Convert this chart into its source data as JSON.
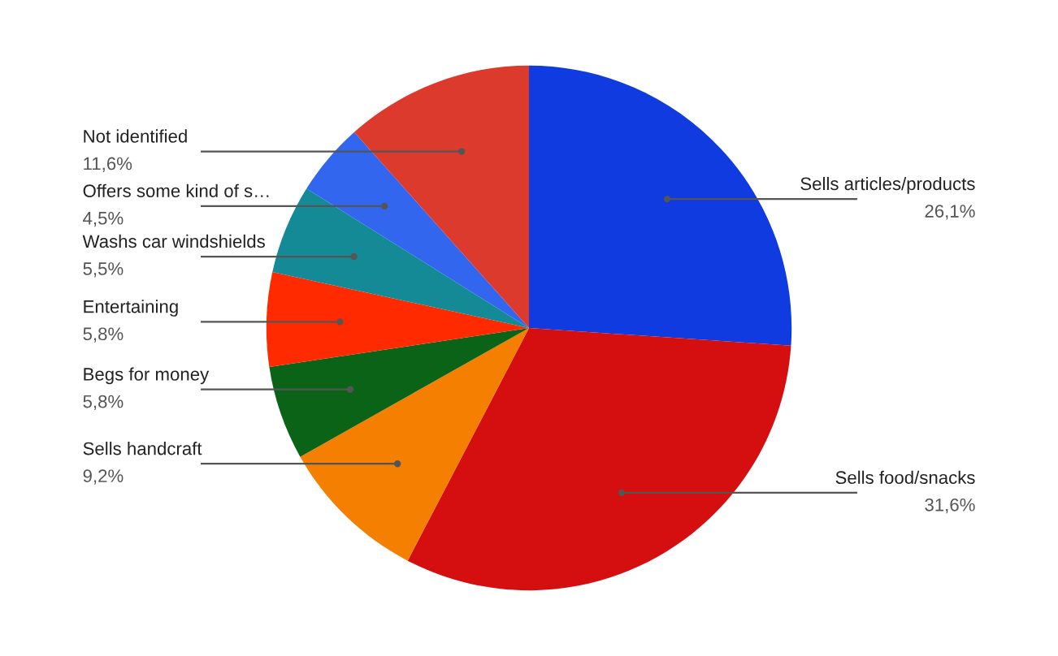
{
  "chart_data": {
    "type": "pie",
    "categories": [
      "Sells articles/products",
      "Sells food/snacks",
      "Sells handcraft",
      "Begs for money",
      "Entertaining",
      "Washs car windshields",
      "Offers some kind of s…",
      "Not identified"
    ],
    "values": [
      26.1,
      31.6,
      9.2,
      5.8,
      5.8,
      5.5,
      4.5,
      11.6
    ],
    "value_labels": [
      "26,1%",
      "31,6%",
      "9,2%",
      "5,8%",
      "5,8%",
      "5,5%",
      "4,5%",
      "11,6%"
    ],
    "colors": [
      "#0f3be0",
      "#d50f0f",
      "#f57f00",
      "#0b6318",
      "#ff2a00",
      "#138a96",
      "#3366ee",
      "#dc3a2c"
    ]
  }
}
